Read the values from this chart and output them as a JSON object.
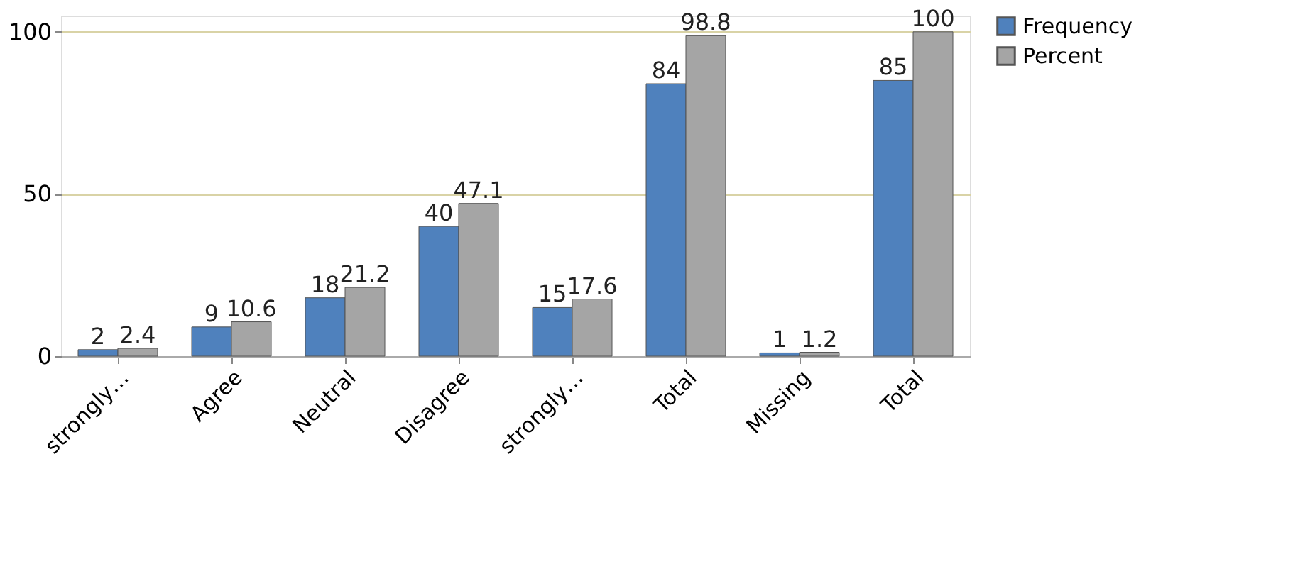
{
  "chart_data": {
    "type": "bar",
    "categories": [
      "strongly…",
      "Agree",
      "Neutral",
      "Disagree",
      "strongly…",
      "Total",
      "Missing",
      "Total"
    ],
    "series": [
      {
        "name": "Frequency",
        "color": "#4f81bd",
        "values": [
          2,
          9,
          18,
          40,
          15,
          84,
          1,
          85
        ]
      },
      {
        "name": "Percent",
        "color": "#a5a5a5",
        "values": [
          2.4,
          10.6,
          21.2,
          47.1,
          17.6,
          98.8,
          1.2,
          100
        ]
      }
    ],
    "ylim": [
      0,
      105
    ],
    "yticks": [
      0,
      50,
      100
    ],
    "grid": "y",
    "legend": "right",
    "data_labels": true
  }
}
